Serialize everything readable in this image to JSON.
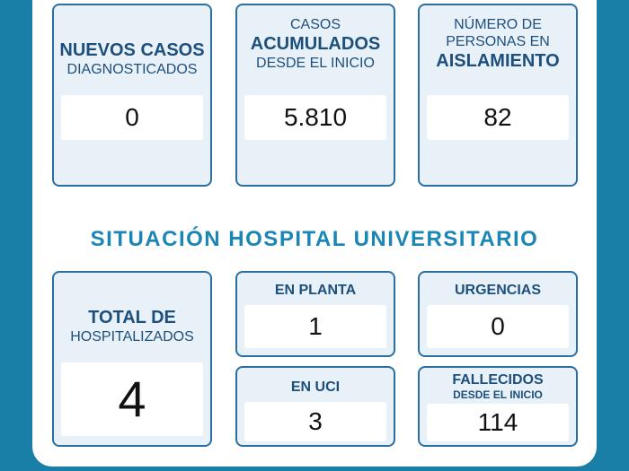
{
  "top_cards": [
    {
      "lines": [
        "NUEVOS CASOS",
        "DIAGNOSTICADOS"
      ],
      "value": "0"
    },
    {
      "lines": [
        "CASOS",
        "ACUMULADOS",
        "DESDE EL INICIO"
      ],
      "value": "5.810"
    },
    {
      "lines": [
        "NÚMERO DE",
        "PERSONAS EN",
        "AISLAMIENTO"
      ],
      "value": "82"
    }
  ],
  "section_title": "SITUACIÓN HOSPITAL UNIVERSITARIO",
  "hospital": {
    "total": {
      "lines": [
        "TOTAL DE",
        "HOSPITALIZADOS"
      ],
      "value": "4"
    },
    "planta": {
      "label": "EN PLANTA",
      "value": "1"
    },
    "urgencias": {
      "label": "URGENCIAS",
      "value": "0"
    },
    "uci": {
      "label": "EN UCI",
      "value": "3"
    },
    "fallecidos": {
      "label": "FALLECIDOS",
      "sublabel": "DESDE EL INICIO",
      "value": "114"
    }
  },
  "colors": {
    "background": "#1a7fa6",
    "card_border": "#2b6fa0",
    "card_fill": "#e9f1f8",
    "title_text": "#1d4f7c",
    "section_title": "#1a86b5"
  }
}
